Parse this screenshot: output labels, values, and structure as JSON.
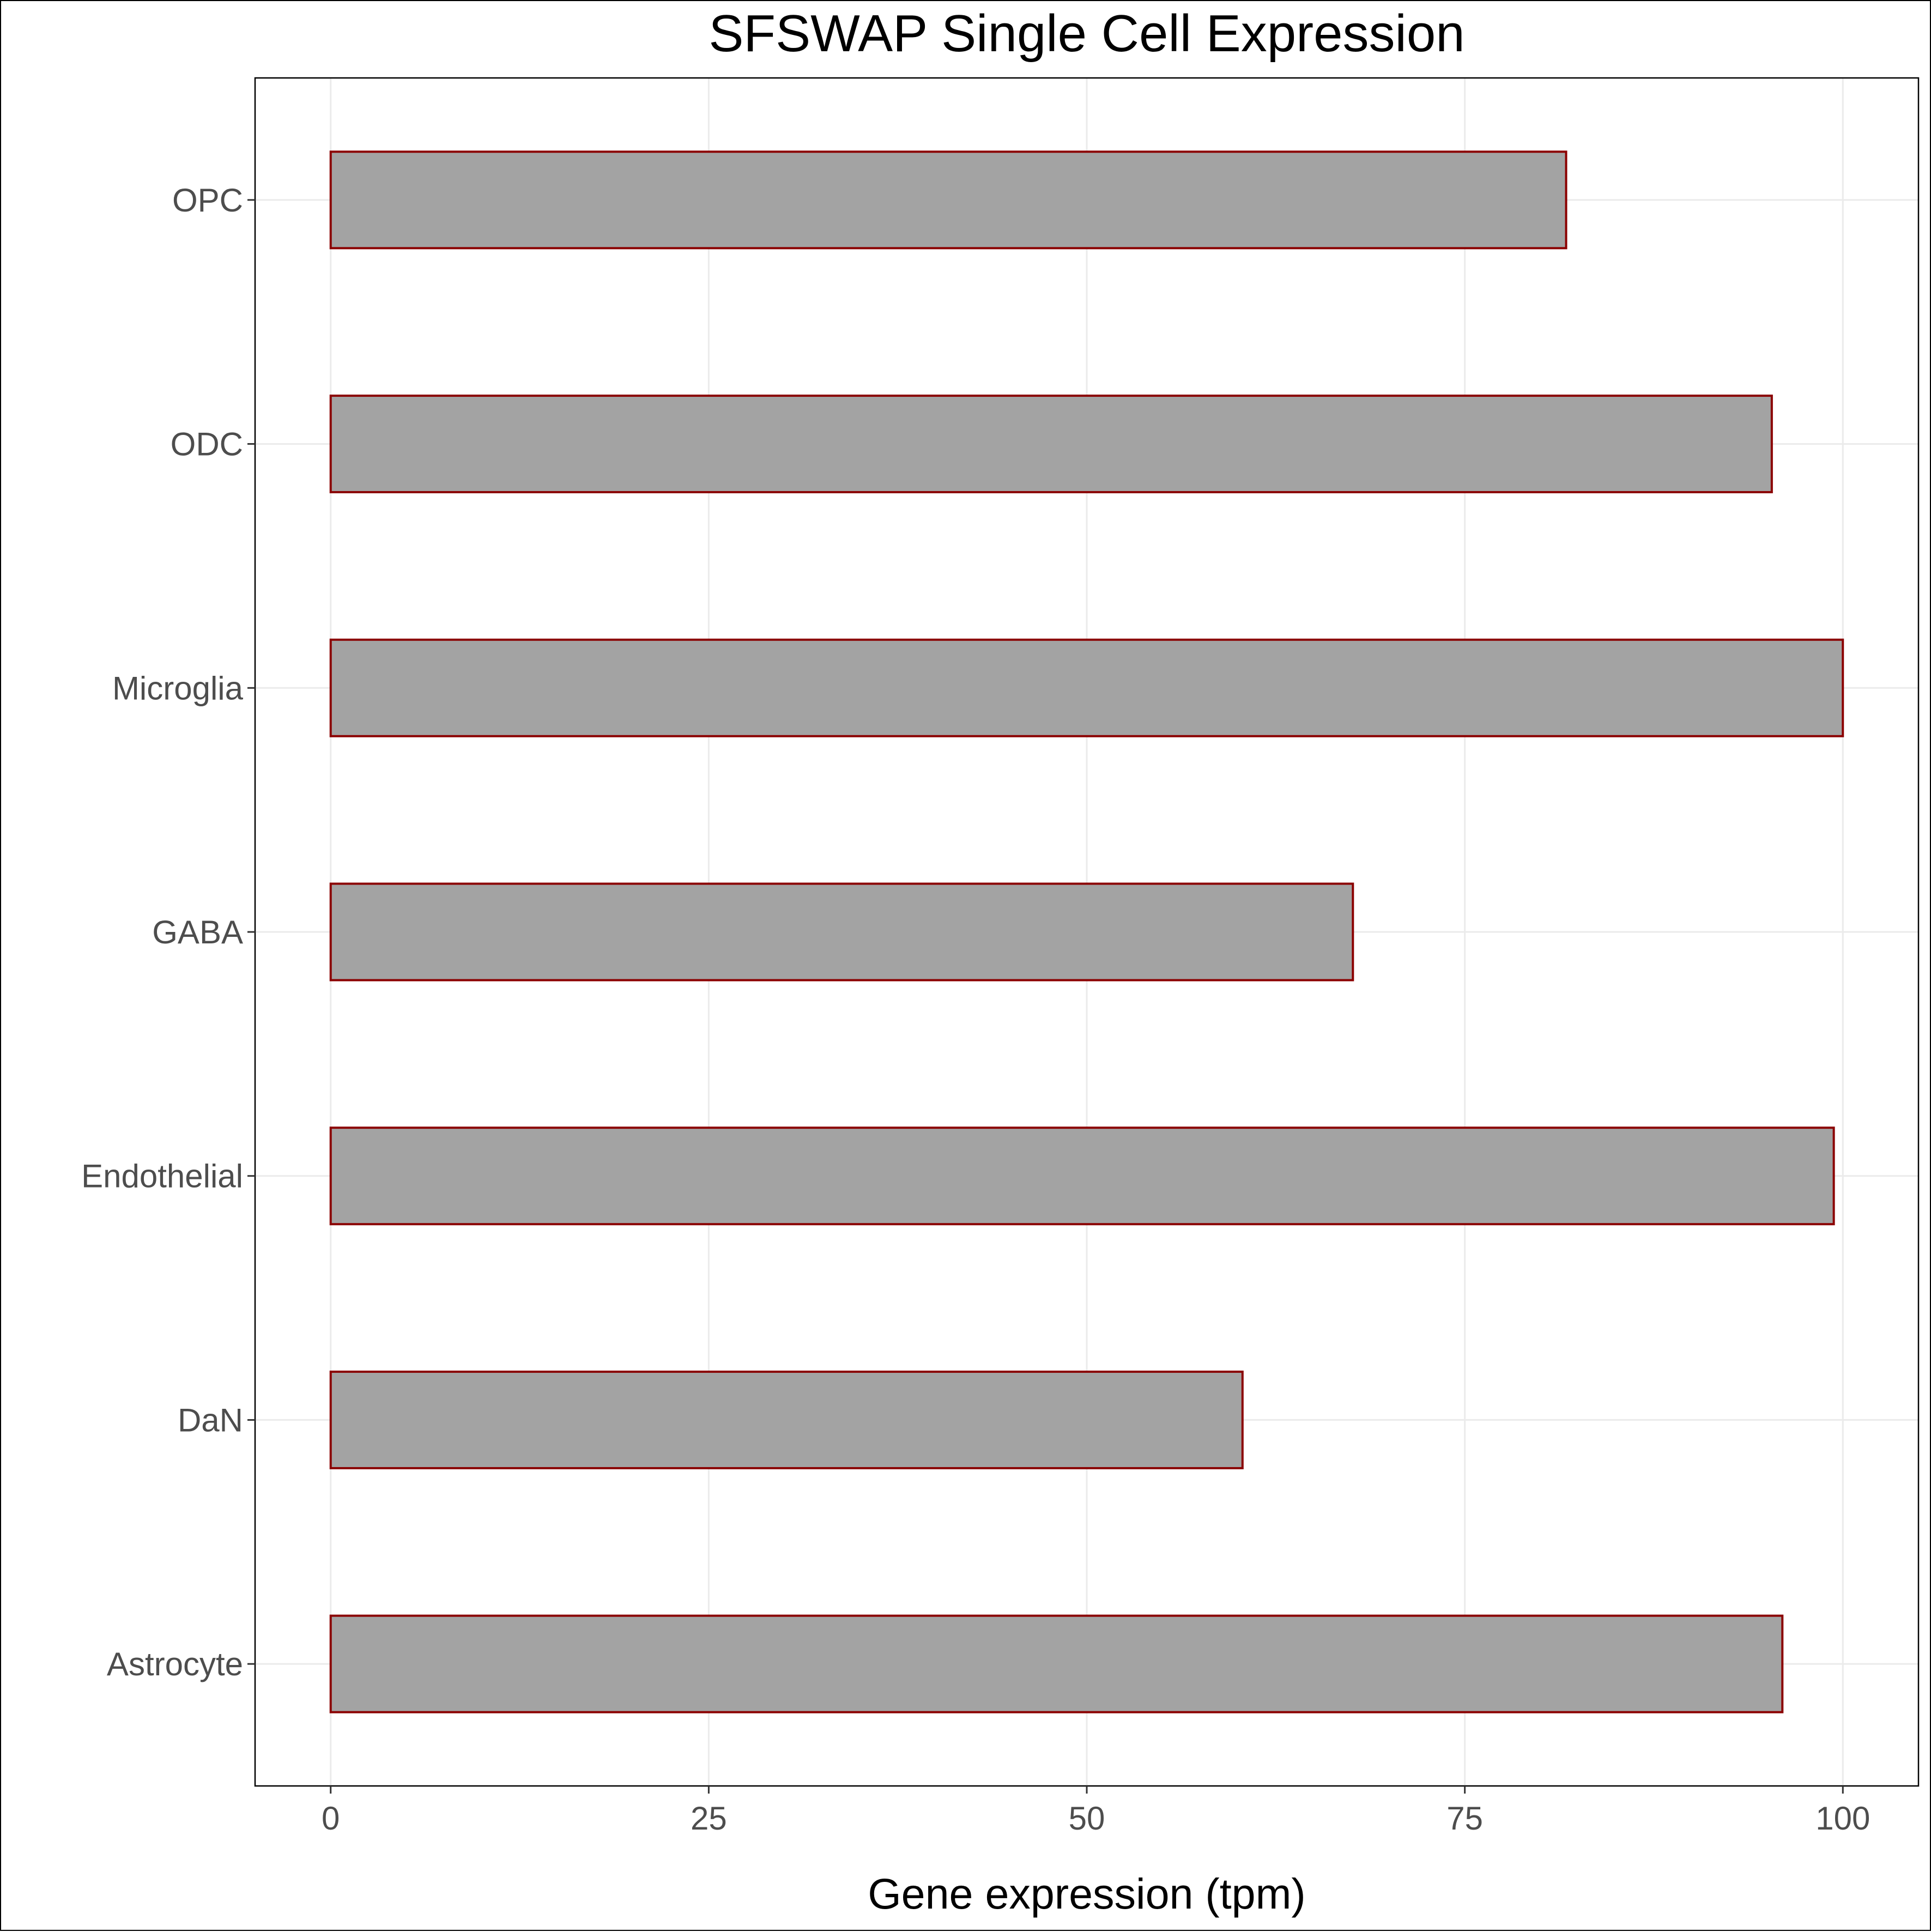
{
  "chart_data": {
    "type": "bar",
    "orientation": "horizontal",
    "title": "SFSWAP Single Cell Expression",
    "xlabel": "Gene expression (tpm)",
    "ylabel": "",
    "categories": [
      "Astrocyte",
      "DaN",
      "Endothelial",
      "GABA",
      "Microglia",
      "ODC",
      "OPC"
    ],
    "values": [
      96.0,
      60.3,
      99.4,
      67.6,
      100.0,
      95.3,
      81.7
    ],
    "xlim": [
      -5,
      105
    ],
    "xticks": [
      0,
      25,
      50,
      75,
      100
    ],
    "xtick_labels": [
      "0",
      "25",
      "50",
      "75",
      "100"
    ],
    "grid": true,
    "legend": "none",
    "colors": {
      "bar_fill": "#a3a3a3",
      "bar_stroke": "#8b0000",
      "grid": "#ebebeb",
      "panel_border": "#000000",
      "tick_text": "#4d4d4d"
    }
  }
}
